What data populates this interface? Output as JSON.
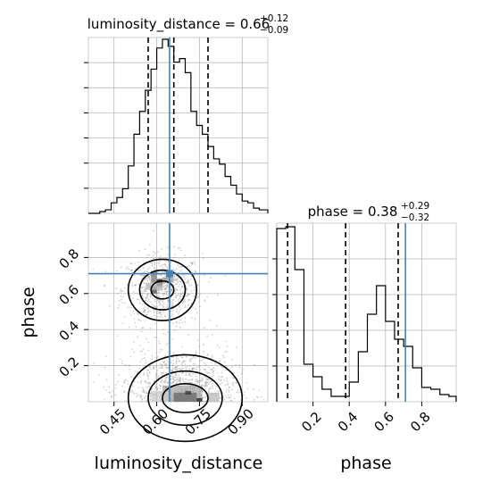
{
  "chart_data": [
    {
      "type": "histogram",
      "panel": "marginal-luminosity_distance",
      "title_param": "luminosity_distance",
      "title_value": "0.66",
      "title_plus": "+0.12",
      "title_minus": "−0.09",
      "xlim": [
        0.36,
        0.99
      ],
      "ylim": [
        0,
        1.0
      ],
      "bins": [
        0.36,
        0.38,
        0.4,
        0.42,
        0.44,
        0.46,
        0.48,
        0.5,
        0.52,
        0.54,
        0.56,
        0.58,
        0.6,
        0.62,
        0.64,
        0.66,
        0.68,
        0.7,
        0.72,
        0.74,
        0.76,
        0.78,
        0.8,
        0.82,
        0.84,
        0.86,
        0.88,
        0.9,
        0.92,
        0.94,
        0.96,
        0.98,
        0.99
      ],
      "counts": [
        0,
        0,
        0.01,
        0.02,
        0.06,
        0.09,
        0.14,
        0.27,
        0.45,
        0.58,
        0.7,
        0.82,
        0.94,
        0.99,
        0.95,
        0.86,
        0.88,
        0.8,
        0.58,
        0.5,
        0.45,
        0.38,
        0.31,
        0.28,
        0.21,
        0.16,
        0.11,
        0.07,
        0.06,
        0.03,
        0.02,
        0.02
      ],
      "quantile_lines": [
        0.57,
        0.66,
        0.78
      ],
      "truth": 0.645,
      "y_ticks_count": 7,
      "grid": true
    },
    {
      "type": "histogram",
      "panel": "marginal-phase",
      "title_param": "phase",
      "title_value": "0.38",
      "title_plus": "+0.29",
      "title_minus": "−0.32",
      "xlim": [
        0.0,
        0.99
      ],
      "ylim": [
        0,
        1.0
      ],
      "bins": [
        0.0,
        0.05,
        0.1,
        0.15,
        0.2,
        0.25,
        0.3,
        0.35,
        0.4,
        0.45,
        0.5,
        0.55,
        0.6,
        0.65,
        0.7,
        0.75,
        0.8,
        0.85,
        0.9,
        0.95,
        0.99
      ],
      "counts": [
        0.97,
        0.98,
        0.74,
        0.21,
        0.14,
        0.07,
        0.03,
        0.03,
        0.11,
        0.28,
        0.49,
        0.65,
        0.45,
        0.35,
        0.31,
        0.19,
        0.08,
        0.07,
        0.04,
        0.03
      ],
      "quantile_lines": [
        0.06,
        0.38,
        0.67
      ],
      "truth": 0.71,
      "grid": true
    },
    {
      "type": "scatter",
      "panel": "joint-luminosity_distance-phase",
      "xlabel": "luminosity_distance",
      "ylabel": "phase",
      "xlim": [
        0.36,
        0.99
      ],
      "ylim": [
        0.0,
        0.99
      ],
      "xticks": [
        "0.45",
        "0.60",
        "0.75",
        "0.90"
      ],
      "xtick_values": [
        0.45,
        0.6,
        0.75,
        0.9
      ],
      "yticks": [
        "0.2",
        "0.4",
        "0.6",
        "0.8"
      ],
      "ytick_values": [
        0.2,
        0.4,
        0.6,
        0.8
      ],
      "truth": [
        0.645,
        0.71
      ],
      "modes": [
        {
          "center": [
            0.62,
            0.62
          ],
          "spread": [
            0.07,
            0.1
          ]
        },
        {
          "center": [
            0.68,
            0.06
          ],
          "spread": [
            0.1,
            0.12
          ]
        }
      ],
      "grid": true
    },
    {
      "type": "axis",
      "panel": "phase-axis",
      "xlabel": "phase",
      "xticks": [
        "0.2",
        "0.4",
        "0.6",
        "0.8"
      ],
      "xtick_values": [
        0.2,
        0.4,
        0.6,
        0.8
      ]
    }
  ],
  "colors": {
    "truth": "#4682b4",
    "hist": "#000000",
    "grid": "#b0b0b0",
    "points": "#7f7f7f"
  }
}
